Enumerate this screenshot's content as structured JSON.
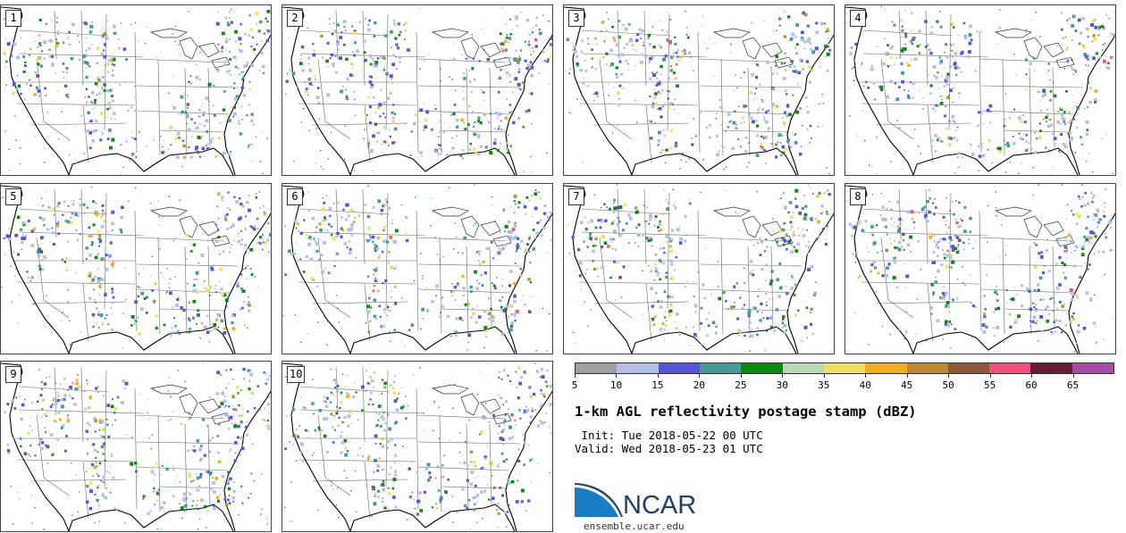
{
  "panels": [
    {
      "label": "1"
    },
    {
      "label": "2"
    },
    {
      "label": "3"
    },
    {
      "label": "4"
    },
    {
      "label": "5"
    },
    {
      "label": "6"
    },
    {
      "label": "7"
    },
    {
      "label": "8"
    },
    {
      "label": "9"
    },
    {
      "label": "10"
    }
  ],
  "legend": {
    "ticks": [
      "5",
      "10",
      "15",
      "20",
      "25",
      "30",
      "35",
      "40",
      "45",
      "50",
      "55",
      "60",
      "65"
    ],
    "colors": [
      "#a0a0a0",
      "#b5bde8",
      "#5555d8",
      "#479a9a",
      "#0a8a0a",
      "#b8d8b8",
      "#f2de66",
      "#f0b020",
      "#c08a34",
      "#8a5a3a",
      "#f0507a",
      "#6a1838",
      "#a84aa8"
    ]
  },
  "title": "1-km AGL reflectivity postage stamp (dBZ)",
  "init": " Init: Tue 2018-05-22 00 UTC",
  "valid": "Valid: Wed 2018-05-23 01 UTC",
  "logo": {
    "text": "NCAR",
    "site": "ensemble.ucar.edu"
  }
}
